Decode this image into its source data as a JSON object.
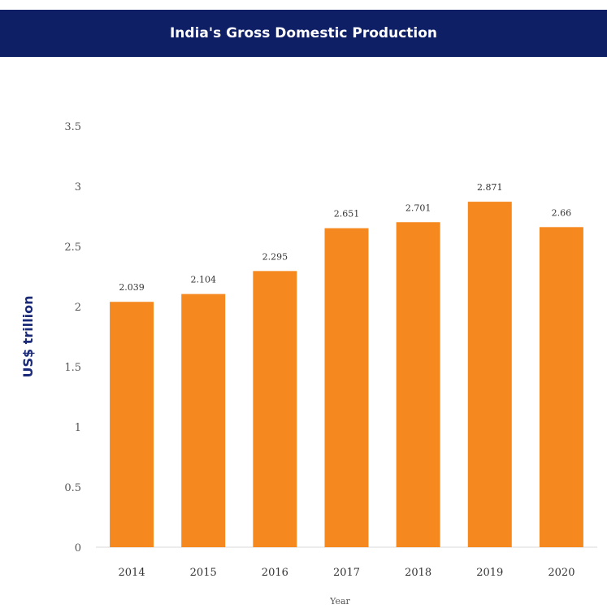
{
  "chart_data": {
    "type": "bar",
    "title": "India's Gross Domestic Production",
    "xlabel": "Year",
    "ylabel": "US$ trillion",
    "categories": [
      "2014",
      "2015",
      "2016",
      "2017",
      "2018",
      "2019",
      "2020"
    ],
    "values": [
      2.039,
      2.104,
      2.295,
      2.651,
      2.701,
      2.871,
      2.66
    ],
    "value_labels": [
      "2.039",
      "2.104",
      "2.295",
      "2.651",
      "2.701",
      "2.871",
      "2.66"
    ],
    "yticks": [
      "0",
      "0.5",
      "1",
      "1.5",
      "2",
      "2.5",
      "3",
      "3.5"
    ],
    "ylim": [
      0,
      3.5
    ],
    "grid": false,
    "legend": "none",
    "colors": {
      "bar": "#f5891f",
      "title_bg": "#0f1f66",
      "title_text": "#ffffff",
      "ylabel": "#1a2a78"
    }
  }
}
